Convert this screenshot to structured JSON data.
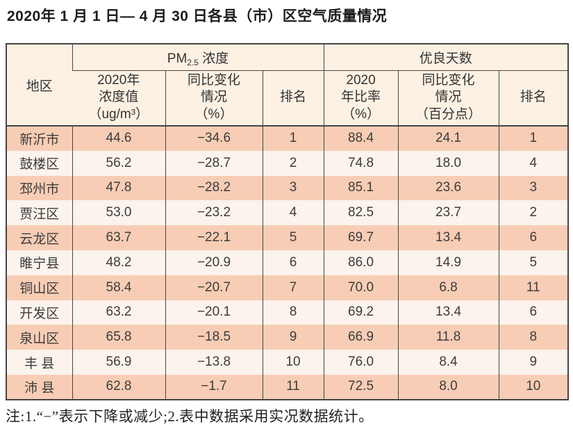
{
  "title": "2020年 1 月 1 日— 4 月 30 日各县（市）区空气质量情况",
  "table": {
    "region_header": "地区",
    "group_pm": {
      "prefix": "PM",
      "sub": "2.5",
      "suffix": " 浓度"
    },
    "group_good_days": "优良天数",
    "subheaders": {
      "pm_value": "2020年\n浓度值\n（ug/m³）",
      "pm_change": "同比变化\n情况\n（%）",
      "pm_rank": "排名",
      "good_rate": "2020\n年比率\n（%）",
      "good_change": "同比变化\n情况\n（百分点）",
      "good_rank": "排名"
    },
    "rows": [
      {
        "region": "新沂市",
        "values": [
          "44.6",
          "−34.6",
          "1",
          "88.4",
          "24.1",
          "1"
        ]
      },
      {
        "region": "鼓楼区",
        "values": [
          "56.2",
          "−28.7",
          "2",
          "74.8",
          "18.0",
          "4"
        ]
      },
      {
        "region": "邳州市",
        "values": [
          "47.8",
          "−28.2",
          "3",
          "85.1",
          "23.6",
          "3"
        ]
      },
      {
        "region": "贾汪区",
        "values": [
          "53.0",
          "−23.2",
          "4",
          "82.5",
          "23.7",
          "2"
        ]
      },
      {
        "region": "云龙区",
        "values": [
          "63.7",
          "−22.1",
          "5",
          "69.7",
          "13.4",
          "6"
        ]
      },
      {
        "region": "睢宁县",
        "values": [
          "48.2",
          "−20.9",
          "6",
          "86.0",
          "14.9",
          "5"
        ]
      },
      {
        "region": "铜山区",
        "values": [
          "58.4",
          "−20.7",
          "7",
          "70.0",
          "6.8",
          "11"
        ]
      },
      {
        "region": "开发区",
        "values": [
          "63.2",
          "−20.1",
          "8",
          "69.2",
          "13.4",
          "6"
        ]
      },
      {
        "region": "泉山区",
        "values": [
          "65.8",
          "−18.5",
          "9",
          "66.9",
          "11.8",
          "8"
        ]
      },
      {
        "region": "丰 县",
        "values": [
          "56.9",
          "−13.8",
          "10",
          "76.0",
          "8.4",
          "9"
        ]
      },
      {
        "region": "沛 县",
        "values": [
          "62.8",
          "−1.7",
          "11",
          "72.5",
          "8.0",
          "10"
        ]
      }
    ]
  },
  "note": "注:1.“−”表示下降或减少;2.表中数据采用实况数据统计。",
  "colors": {
    "row_pink": "#f8cdb5",
    "row_light": "#fbf3ec",
    "header_cream": "#fcf1e3",
    "border": "#454545",
    "text": "#3c3c3c"
  }
}
